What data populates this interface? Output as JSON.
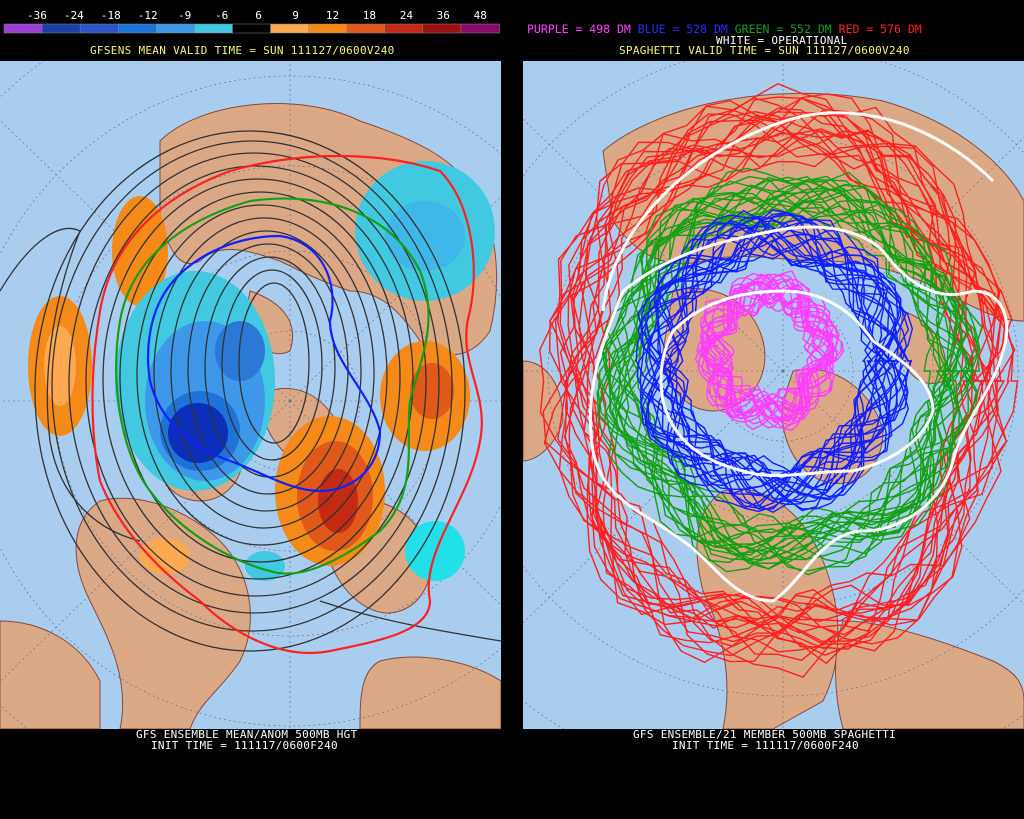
{
  "colorbar": {
    "ticks": [
      "-36",
      "-24",
      "-18",
      "-12",
      "-9",
      "-6",
      "6",
      "9",
      "12",
      "18",
      "24",
      "36",
      "48"
    ],
    "colors": [
      "#9a3fd6",
      "#1b3fa6",
      "#2b55c8",
      "#1e73d8",
      "#3d98ea",
      "#40c9e0",
      "#000000",
      "#ffa852",
      "#f58a18",
      "#e0581a",
      "#c42a14",
      "#9a1010",
      "#8a0a6a"
    ]
  },
  "left_panel": {
    "top_title": "GFSENS MEAN VALID TIME = SUN 111127/0600V240",
    "bottom_line1": "GFS ENSEMBLE MEAN/ANOM 500MB HGT",
    "bottom_line2": "INIT TIME = 111117/0600F240"
  },
  "right_panel": {
    "legend": [
      {
        "text": "PURPLE = 498 DM",
        "color": "#ff40ff"
      },
      {
        "text": "BLUE = 528 DM",
        "color": "#2a2aff"
      },
      {
        "text": "GREEN = 552 DM",
        "color": "#14a014"
      },
      {
        "text": "RED = 576 DM",
        "color": "#ff2020"
      }
    ],
    "operational_label": "WHITE = OPERATIONAL",
    "top_title": "SPAGHETTI VALID TIME = SUN 111127/0600V240",
    "bottom_line1": "GFS ENSEMBLE/21 MEMBER 500MB SPAGHETTI",
    "bottom_line2": "INIT TIME = 111117/0600F240"
  },
  "map": {
    "ocean_color": "#a8cdee",
    "land_color": "#dba886",
    "coast_color": "#8a4a3a"
  }
}
